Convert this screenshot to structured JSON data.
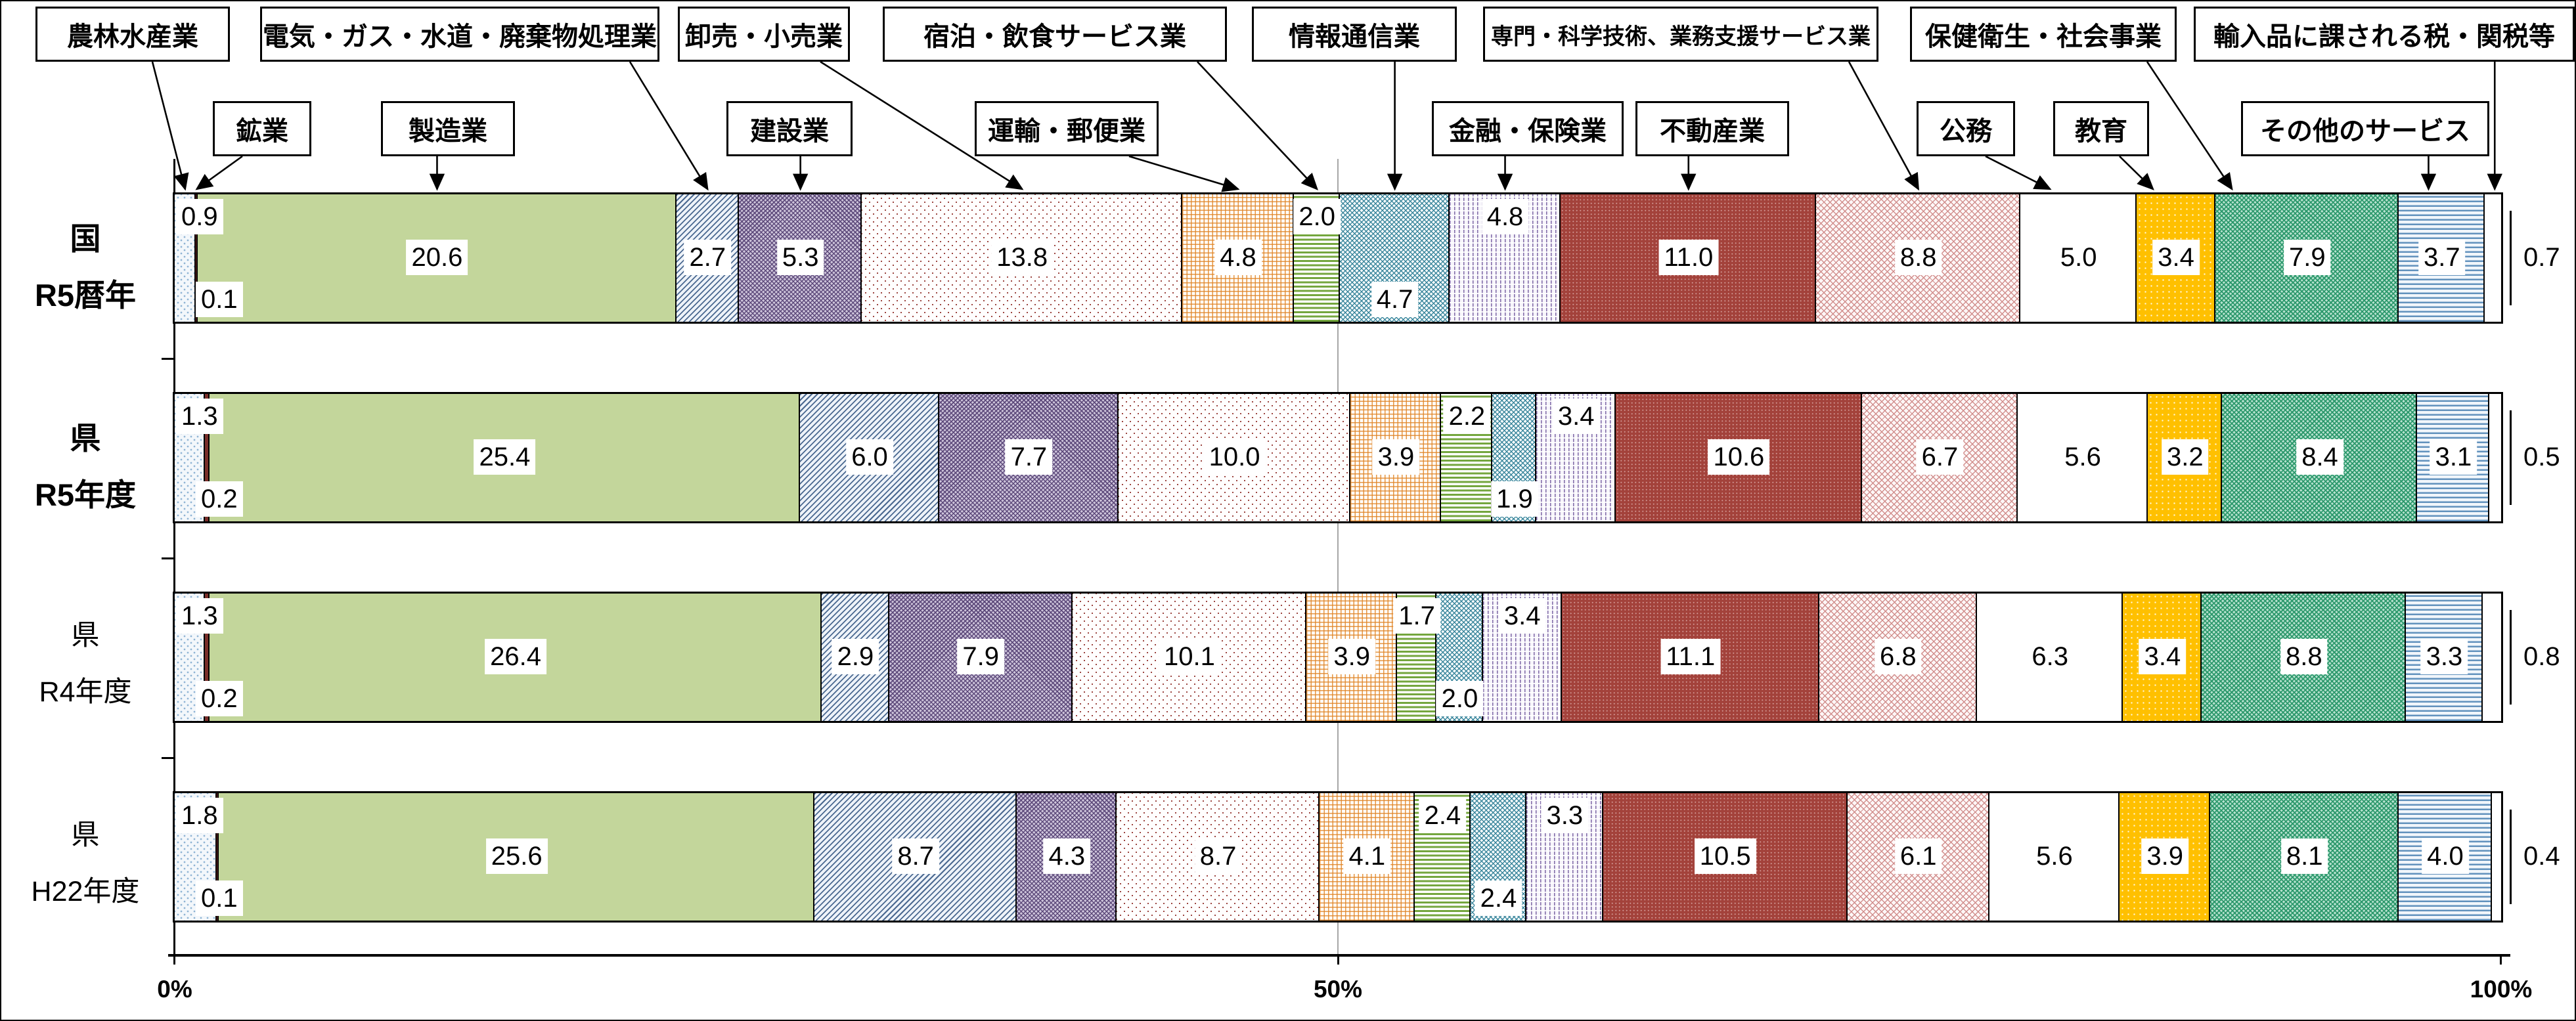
{
  "chart_data": {
    "type": "bar",
    "orientation": "horizontal-stacked",
    "unit": "%",
    "value_format": "one-decimal",
    "grid": "vertical-line-at-50-percent",
    "legend_position": "callout-boxes-above-chart",
    "categories": [
      {
        "name": "農林水産業",
        "fill": "blue-dot-pattern",
        "color": "#8fb4d4"
      },
      {
        "name": "鉱業",
        "fill": "solid",
        "color": "#7a2e2a"
      },
      {
        "name": "製造業",
        "fill": "solid",
        "color": "#c3d69b"
      },
      {
        "name": "電気・ガス・水道・廃棄物処理業",
        "fill": "blue-diagonal-hatch",
        "color": "#4a6890"
      },
      {
        "name": "建設業",
        "fill": "purple-weave-pattern",
        "color": "#5a4678"
      },
      {
        "name": "卸売・小売業",
        "fill": "red-dot-pattern",
        "color": "#9c4540"
      },
      {
        "name": "運輸・郵便業",
        "fill": "orange-grid-pattern",
        "color": "#e08426"
      },
      {
        "name": "宿泊・飲食サービス業",
        "fill": "green-horizontal-stripes",
        "color": "#74a63e"
      },
      {
        "name": "情報通信業",
        "fill": "teal-crosshatch",
        "color": "#2f7f96"
      },
      {
        "name": "金融・保険業",
        "fill": "purple-vertical-dashes",
        "color": "#7e68a6"
      },
      {
        "name": "不動産業",
        "fill": "dark-red-dot-texture",
        "color": "#a3423b"
      },
      {
        "name": "専門・科学技術、業務支援サービス業",
        "fill": "pink-crosshatch",
        "color": "#d08b89"
      },
      {
        "name": "公務",
        "fill": "plain-white",
        "color": "#ffffff"
      },
      {
        "name": "教育",
        "fill": "gold-with-white-dots",
        "color": "#ffc000"
      },
      {
        "name": "保健衛生・社会事業",
        "fill": "green-zigzag-pattern",
        "color": "#289669"
      },
      {
        "name": "その他のサービス",
        "fill": "blue-horizontal-stripes",
        "color": "#6292bd"
      },
      {
        "name": "輸入品に課される税・関税等",
        "fill": "plain-white",
        "color": "#ffffff"
      }
    ],
    "rows": [
      {
        "label": [
          "国",
          "R5暦年"
        ],
        "bold": true,
        "values": [
          0.9,
          0.1,
          20.6,
          2.7,
          5.3,
          13.8,
          4.8,
          2.0,
          4.7,
          4.8,
          11.0,
          8.8,
          5.0,
          3.4,
          7.9,
          3.7,
          0.7
        ]
      },
      {
        "label": [
          "県",
          "R5年度"
        ],
        "bold": true,
        "values": [
          1.3,
          0.2,
          25.4,
          6.0,
          7.7,
          10.0,
          3.9,
          2.2,
          1.9,
          3.4,
          10.6,
          6.7,
          5.6,
          3.2,
          8.4,
          3.1,
          0.5
        ]
      },
      {
        "label": [
          "県",
          "R4年度"
        ],
        "bold": false,
        "values": [
          1.3,
          0.2,
          26.4,
          2.9,
          7.9,
          10.1,
          3.9,
          1.7,
          2.0,
          3.4,
          11.1,
          6.8,
          6.3,
          3.4,
          8.8,
          3.3,
          0.8
        ]
      },
      {
        "label": [
          "県",
          "H22年度"
        ],
        "bold": false,
        "values": [
          1.8,
          0.1,
          25.6,
          8.7,
          4.3,
          8.7,
          4.1,
          2.4,
          2.4,
          3.3,
          10.5,
          6.1,
          5.6,
          3.9,
          8.1,
          4.0,
          0.4
        ]
      }
    ],
    "value_label_positions": [
      "up",
      "down",
      "center",
      "center",
      "center",
      "center",
      "center",
      "up",
      "down",
      "up",
      "center",
      "center",
      "center",
      "center",
      "center",
      "center",
      "outside"
    ],
    "x_axis": {
      "ticks": [
        "0%",
        "50%",
        "100%"
      ],
      "range": [
        0,
        100
      ],
      "gridline_at": 50
    }
  }
}
